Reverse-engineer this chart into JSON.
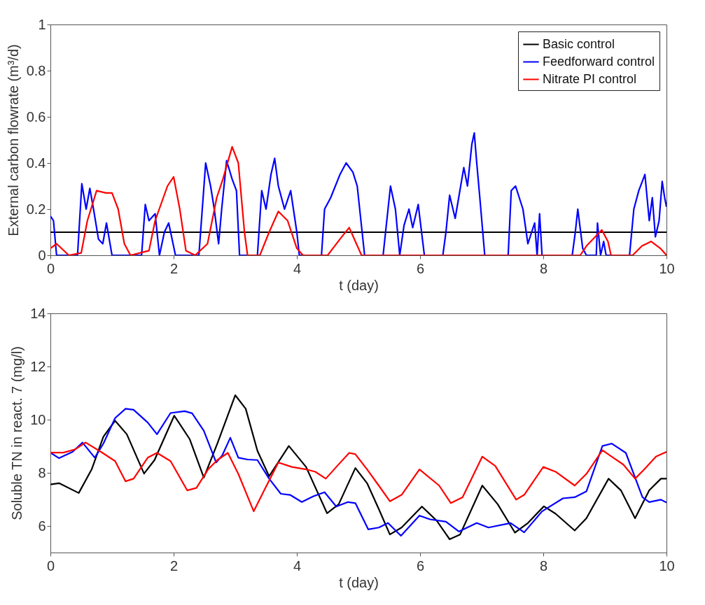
{
  "chart_data": [
    {
      "type": "line",
      "xlabel": "t (day)",
      "ylabel": "External carbon flowrate (m³/d)",
      "xlim": [
        0,
        10
      ],
      "xticks": [
        0,
        2,
        4,
        6,
        8,
        10
      ],
      "ylim": [
        0,
        1
      ],
      "yticks": [
        0,
        0.2,
        0.4,
        0.6,
        0.8,
        1
      ],
      "grid": false,
      "legend": "top right",
      "series": [
        {
          "name": "Basic control",
          "color": "#000000",
          "x": [
            0,
            10
          ],
          "values": [
            0.1,
            0.1
          ]
        },
        {
          "name": "Feedforward control",
          "color": "#0000ff",
          "x": [
            0,
            0.05,
            0.1,
            0.44,
            0.51,
            0.58,
            0.64,
            0.7,
            0.78,
            0.85,
            0.91,
            1.0,
            1.48,
            1.54,
            1.6,
            1.7,
            1.77,
            1.85,
            1.92,
            2.03,
            2.41,
            2.52,
            2.6,
            2.66,
            2.73,
            2.78,
            2.86,
            2.95,
            3.02,
            3.07,
            3.36,
            3.43,
            3.5,
            3.58,
            3.64,
            3.7,
            3.8,
            3.9,
            4.0,
            4.04,
            4.4,
            4.45,
            4.55,
            4.7,
            4.8,
            4.91,
            4.98,
            5.06,
            5.1,
            5.4,
            5.52,
            5.6,
            5.67,
            5.74,
            5.82,
            5.88,
            5.97,
            6.07,
            6.37,
            6.42,
            6.48,
            6.57,
            6.71,
            6.77,
            6.84,
            6.88,
            6.92,
            6.97,
            7.05,
            7.43,
            7.48,
            7.55,
            7.67,
            7.75,
            7.86,
            7.9,
            7.94,
            7.98,
            8.47,
            8.52,
            8.56,
            8.64,
            8.7,
            8.86,
            8.88,
            8.93,
            8.98,
            9.02,
            9.4,
            9.47,
            9.55,
            9.65,
            9.72,
            9.77,
            9.82,
            9.88,
            9.93,
            9.97,
            10
          ],
          "values": [
            0.17,
            0.15,
            0,
            0,
            0.31,
            0.2,
            0.29,
            0.2,
            0.07,
            0.05,
            0.14,
            0,
            0,
            0.22,
            0.15,
            0.18,
            0,
            0.1,
            0.14,
            0,
            0,
            0.4,
            0.3,
            0.2,
            0.05,
            0.2,
            0.41,
            0.33,
            0.28,
            0,
            0,
            0.28,
            0.2,
            0.35,
            0.42,
            0.3,
            0.2,
            0.28,
            0.1,
            0,
            0,
            0.2,
            0.25,
            0.35,
            0.4,
            0.36,
            0.3,
            0.1,
            0,
            0,
            0.3,
            0.2,
            0,
            0.13,
            0.2,
            0.12,
            0.22,
            0,
            0,
            0.1,
            0.26,
            0.16,
            0.38,
            0.3,
            0.48,
            0.53,
            0.4,
            0.25,
            0,
            0,
            0.28,
            0.3,
            0.2,
            0.05,
            0.14,
            0,
            0.18,
            0,
            0,
            0.1,
            0.2,
            0.03,
            0,
            0,
            0.14,
            0,
            0.06,
            0,
            0,
            0.2,
            0.28,
            0.35,
            0.15,
            0.25,
            0.08,
            0.15,
            0.32,
            0.25,
            0.21
          ]
        },
        {
          "name": "Nitrate PI control",
          "color": "#ff0000",
          "x": [
            0,
            0.1,
            0.3,
            0.5,
            0.6,
            0.75,
            0.9,
            1.0,
            1.1,
            1.2,
            1.3,
            1.6,
            1.7,
            1.9,
            2.0,
            2.1,
            2.2,
            2.35,
            2.55,
            2.7,
            2.8,
            2.95,
            3.05,
            3.15,
            3.2,
            3.4,
            3.55,
            3.7,
            3.85,
            4.0,
            4.1,
            4.5,
            4.7,
            4.85,
            4.95,
            5.05,
            8.6,
            8.7,
            8.95,
            9.05,
            9.1,
            9.45,
            9.6,
            9.75,
            9.9,
            10
          ],
          "values": [
            0.03,
            0.05,
            0,
            0.01,
            0.15,
            0.28,
            0.27,
            0.27,
            0.2,
            0.05,
            0,
            0.02,
            0.15,
            0.3,
            0.34,
            0.2,
            0.02,
            0,
            0.05,
            0.25,
            0.33,
            0.47,
            0.4,
            0.1,
            0,
            0,
            0.1,
            0.19,
            0.15,
            0.03,
            0,
            0,
            0.07,
            0.12,
            0.06,
            0,
            0,
            0.04,
            0.11,
            0.06,
            0,
            0,
            0.04,
            0.06,
            0.03,
            0
          ]
        }
      ]
    },
    {
      "type": "line",
      "xlabel": "t (day)",
      "ylabel": "Soluble TN in react. 7 (mg/l)",
      "xlim": [
        0,
        10
      ],
      "xticks": [
        0,
        2,
        4,
        6,
        8,
        10
      ],
      "ylim": [
        5,
        14
      ],
      "yticks": [
        6,
        8,
        10,
        12,
        14
      ],
      "grid": false,
      "legend": "top right",
      "series": [
        {
          "name": "Basic control",
          "color": "#000000",
          "x": [
            0,
            0.14,
            0.46,
            0.67,
            0.86,
            1.05,
            1.24,
            1.52,
            1.69,
            2.01,
            2.26,
            2.49,
            2.71,
            3.0,
            3.17,
            3.36,
            3.55,
            3.87,
            4.15,
            4.49,
            4.68,
            4.95,
            5.14,
            5.33,
            5.51,
            5.7,
            6.03,
            6.27,
            6.48,
            6.65,
            7.01,
            7.26,
            7.54,
            7.75,
            8.01,
            8.2,
            8.51,
            8.7,
            9.06,
            9.26,
            9.49,
            9.72,
            9.91,
            10
          ],
          "values": [
            7.56,
            7.61,
            7.24,
            8.13,
            9.36,
            9.96,
            9.45,
            7.97,
            8.48,
            10.15,
            9.27,
            7.82,
            9.1,
            10.92,
            10.41,
            8.83,
            7.87,
            9.01,
            8.22,
            6.48,
            6.82,
            8.18,
            7.61,
            6.64,
            5.68,
            5.94,
            6.73,
            6.2,
            5.5,
            5.68,
            7.52,
            6.82,
            5.75,
            6.11,
            6.74,
            6.46,
            5.83,
            6.29,
            7.78,
            7.34,
            6.29,
            7.34,
            7.78,
            7.78
          ]
        },
        {
          "name": "Feedforward control",
          "color": "#0000ff",
          "x": [
            0,
            0.14,
            0.36,
            0.52,
            0.72,
            0.86,
            1.05,
            1.22,
            1.35,
            1.58,
            1.73,
            1.95,
            2.18,
            2.3,
            2.49,
            2.69,
            2.79,
            2.92,
            3.05,
            3.2,
            3.36,
            3.55,
            3.74,
            3.89,
            4.08,
            4.27,
            4.45,
            4.64,
            4.83,
            4.95,
            5.16,
            5.33,
            5.48,
            5.69,
            5.99,
            6.16,
            6.42,
            6.63,
            6.92,
            7.11,
            7.47,
            7.69,
            7.98,
            8.32,
            8.51,
            8.7,
            8.96,
            9.11,
            9.34,
            9.61,
            9.72,
            9.91,
            10
          ],
          "values": [
            8.76,
            8.55,
            8.79,
            9.14,
            8.57,
            9.1,
            10.06,
            10.41,
            10.37,
            9.89,
            9.45,
            10.25,
            10.32,
            10.24,
            9.58,
            8.39,
            8.66,
            9.32,
            8.57,
            8.5,
            8.48,
            7.78,
            7.21,
            7.17,
            6.9,
            7.12,
            7.27,
            6.73,
            6.9,
            6.86,
            5.87,
            5.94,
            6.11,
            5.63,
            6.39,
            6.25,
            6.16,
            5.79,
            6.11,
            5.94,
            6.11,
            5.76,
            6.55,
            7.04,
            7.08,
            7.3,
            9.01,
            9.1,
            8.75,
            7.08,
            6.9,
            6.99,
            6.88
          ]
        },
        {
          "name": "Nitrate PI control",
          "color": "#ff0000",
          "x": [
            0,
            0.21,
            0.4,
            0.57,
            0.82,
            1.05,
            1.22,
            1.35,
            1.58,
            1.73,
            1.95,
            2.22,
            2.37,
            2.56,
            2.71,
            2.88,
            3.05,
            3.3,
            3.47,
            3.7,
            3.92,
            4.15,
            4.3,
            4.47,
            4.64,
            4.85,
            4.95,
            5.14,
            5.33,
            5.51,
            5.7,
            5.99,
            6.31,
            6.5,
            6.69,
            7.01,
            7.22,
            7.56,
            7.69,
            8.0,
            8.2,
            8.51,
            8.7,
            8.96,
            9.11,
            9.3,
            9.49,
            9.64,
            9.83,
            10
          ],
          "values": [
            8.76,
            8.76,
            8.88,
            9.14,
            8.79,
            8.44,
            7.68,
            7.78,
            8.57,
            8.75,
            8.44,
            7.34,
            7.43,
            8.13,
            8.48,
            8.75,
            7.96,
            6.55,
            7.34,
            8.39,
            8.22,
            8.13,
            8.04,
            7.78,
            8.22,
            8.75,
            8.7,
            8.13,
            7.52,
            6.93,
            7.17,
            8.13,
            7.52,
            6.86,
            7.08,
            8.61,
            8.26,
            6.99,
            7.17,
            8.22,
            8.04,
            7.52,
            7.96,
            8.85,
            8.61,
            8.31,
            7.78,
            8.13,
            8.61,
            8.79
          ]
        }
      ]
    }
  ]
}
